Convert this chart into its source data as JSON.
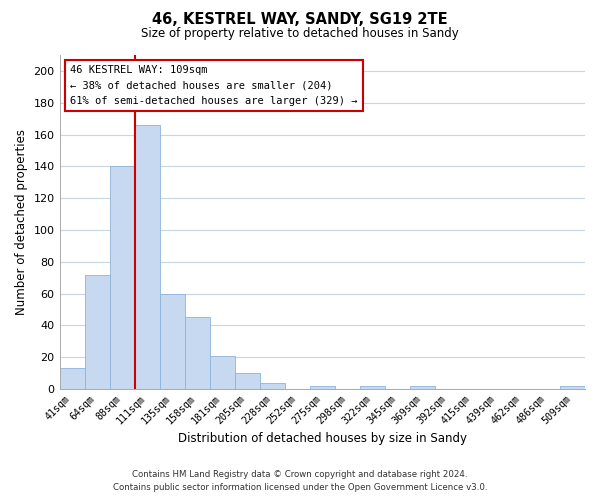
{
  "title": "46, KESTREL WAY, SANDY, SG19 2TE",
  "subtitle": "Size of property relative to detached houses in Sandy",
  "xlabel": "Distribution of detached houses by size in Sandy",
  "ylabel": "Number of detached properties",
  "bar_labels": [
    "41sqm",
    "64sqm",
    "88sqm",
    "111sqm",
    "135sqm",
    "158sqm",
    "181sqm",
    "205sqm",
    "228sqm",
    "252sqm",
    "275sqm",
    "298sqm",
    "322sqm",
    "345sqm",
    "369sqm",
    "392sqm",
    "415sqm",
    "439sqm",
    "462sqm",
    "486sqm",
    "509sqm"
  ],
  "bar_values": [
    13,
    72,
    140,
    166,
    60,
    45,
    21,
    10,
    4,
    0,
    2,
    0,
    2,
    0,
    2,
    0,
    0,
    0,
    0,
    0,
    2
  ],
  "bar_color": "#c6d9f0",
  "bar_edge_color": "#8db3d9",
  "vline_index": 3,
  "vline_color": "#cc0000",
  "annotation_title": "46 KESTREL WAY: 109sqm",
  "annotation_line1": "← 38% of detached houses are smaller (204)",
  "annotation_line2": "61% of semi-detached houses are larger (329) →",
  "annotation_box_color": "#ffffff",
  "annotation_box_edge": "#cc0000",
  "ylim": [
    0,
    210
  ],
  "yticks": [
    0,
    20,
    40,
    60,
    80,
    100,
    120,
    140,
    160,
    180,
    200
  ],
  "footer_line1": "Contains HM Land Registry data © Crown copyright and database right 2024.",
  "footer_line2": "Contains public sector information licensed under the Open Government Licence v3.0.",
  "background_color": "#ffffff",
  "grid_color": "#c8d4e8"
}
